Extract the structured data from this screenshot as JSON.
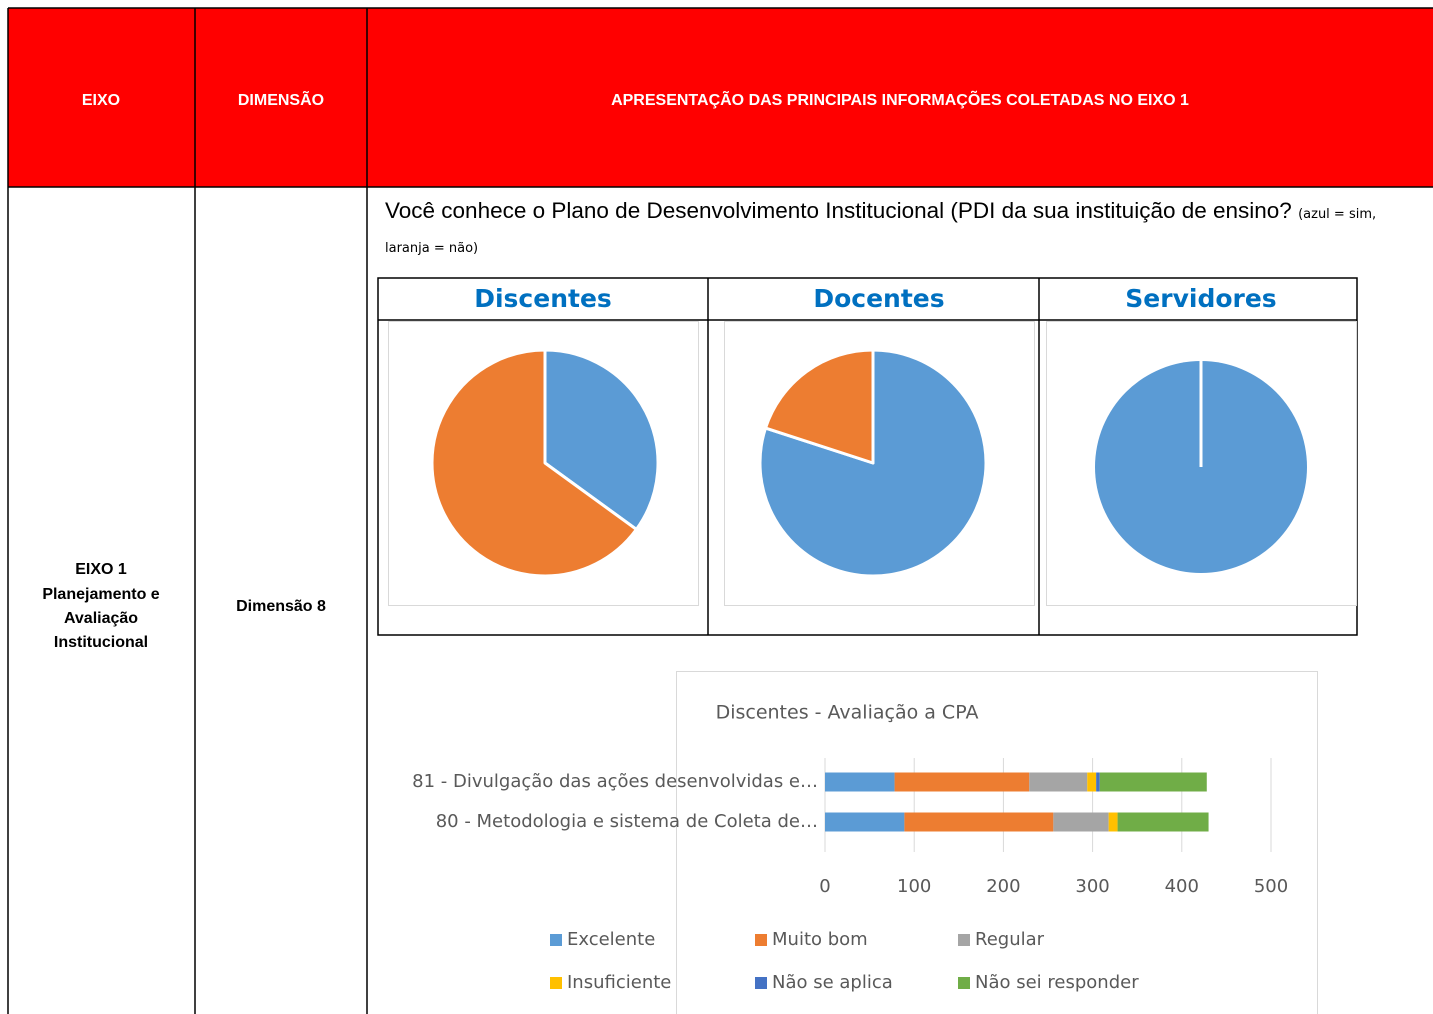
{
  "table": {
    "headers": [
      "EIXO",
      "DIMENSÃO",
      "APRESENTAÇÃO DAS PRINCIPAIS INFORMAÇÕES COLETADAS NO EIXO 1"
    ],
    "eixo": [
      "EIXO 1",
      "Planejamento e",
      "Avaliação",
      "Institucional"
    ],
    "dimensao": "Dimensão 8"
  },
  "question": {
    "text": "Você conhece o Plano de Desenvolvimento Institucional (PDI da sua instituição de ensino?",
    "note": "(azul = sim, laranja = não)"
  },
  "chart_data": [
    {
      "type": "pie",
      "title": "Discentes",
      "values": [
        35,
        65
      ],
      "colors": [
        "#5b9bd5",
        "#ed7d31"
      ]
    },
    {
      "type": "pie",
      "title": "Docentes",
      "values": [
        80,
        20
      ],
      "colors": [
        "#5b9bd5",
        "#ed7d31"
      ]
    },
    {
      "type": "pie",
      "title": "Servidores",
      "values": [
        100
      ],
      "colors": [
        "#5b9bd5"
      ]
    },
    {
      "type": "stacked-barh",
      "title": "Discentes - Avaliação a CPA",
      "categories": [
        "81 - Divulgação das ações desenvolvidas e…",
        "80 - Metodologia e sistema de Coleta de…"
      ],
      "series": [
        {
          "name": "Excelente",
          "color": "#5b9bd5",
          "values": [
            78,
            89
          ]
        },
        {
          "name": "Muito bom",
          "color": "#ed7d31",
          "values": [
            151,
            167
          ]
        },
        {
          "name": "Regular",
          "color": "#a5a5a5",
          "values": [
            65,
            62
          ]
        },
        {
          "name": "Insuficiente",
          "color": "#ffc000",
          "values": [
            10,
            10
          ]
        },
        {
          "name": "Não se aplica",
          "color": "#4472c4",
          "values": [
            4,
            0
          ]
        },
        {
          "name": "Não sei responder",
          "color": "#70ad47",
          "values": [
            120,
            102
          ]
        }
      ],
      "xlim": [
        0,
        500
      ],
      "xticks": [
        0,
        100,
        200,
        300,
        400,
        500
      ],
      "grid": true
    }
  ]
}
